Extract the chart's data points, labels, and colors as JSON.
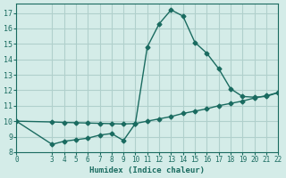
{
  "xlabel": "Humidex (Indice chaleur)",
  "bg_color": "#d4ece8",
  "grid_color": "#b0d0cc",
  "line_color": "#1a6b60",
  "line1_x": [
    0,
    3,
    4,
    5,
    6,
    7,
    8,
    9,
    10,
    11,
    12,
    13,
    14,
    15,
    16,
    17,
    18,
    19,
    20,
    21,
    22
  ],
  "line1_y": [
    10.0,
    8.5,
    8.7,
    8.8,
    8.9,
    9.1,
    9.2,
    8.75,
    9.85,
    14.8,
    16.3,
    17.2,
    16.8,
    15.1,
    14.4,
    13.4,
    12.1,
    11.6,
    11.55,
    11.6,
    11.85
  ],
  "line2_x": [
    0,
    3,
    4,
    5,
    6,
    7,
    8,
    9,
    10,
    11,
    12,
    13,
    14,
    15,
    16,
    17,
    18,
    19,
    20,
    21,
    22
  ],
  "line2_y": [
    10.0,
    9.95,
    9.92,
    9.9,
    9.88,
    9.86,
    9.84,
    9.82,
    9.85,
    10.0,
    10.15,
    10.3,
    10.5,
    10.65,
    10.8,
    11.0,
    11.15,
    11.3,
    11.5,
    11.65,
    11.85
  ],
  "xlim": [
    0,
    22
  ],
  "ylim": [
    8,
    17.6
  ],
  "yticks": [
    8,
    9,
    10,
    11,
    12,
    13,
    14,
    15,
    16,
    17
  ],
  "xticks": [
    0,
    3,
    4,
    5,
    6,
    7,
    8,
    9,
    10,
    11,
    12,
    13,
    14,
    15,
    16,
    17,
    18,
    19,
    20,
    21,
    22
  ]
}
